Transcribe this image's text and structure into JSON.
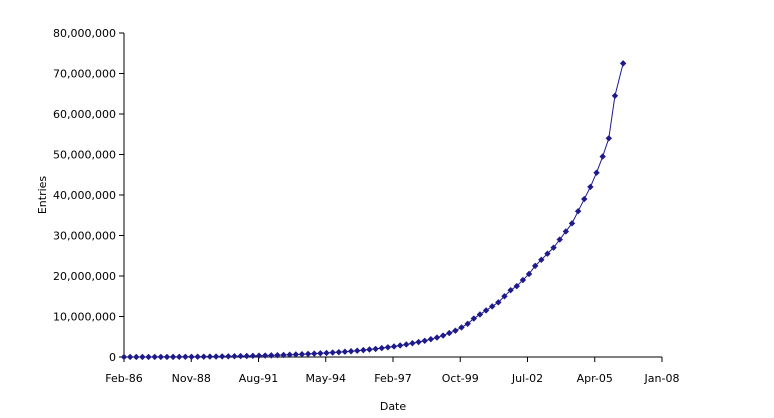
{
  "chart_data": {
    "type": "line",
    "title": "",
    "xlabel": "Date",
    "ylabel": "Entries",
    "x_tick_labels": [
      "Feb-86",
      "Nov-88",
      "Aug-91",
      "May-94",
      "Feb-97",
      "Oct-99",
      "Jul-02",
      "Apr-05",
      "Jan-08"
    ],
    "y_tick_labels": [
      "0",
      "10,000,000",
      "20,000,000",
      "30,000,000",
      "40,000,000",
      "50,000,000",
      "60,000,000",
      "70,000,000",
      "80,000,000"
    ],
    "xlim": [
      "1986-02",
      "2008-01"
    ],
    "ylim": [
      0,
      80000000
    ],
    "grid": false,
    "legend": "none",
    "series_color": "#1f1a8c",
    "marker": "diamond",
    "series": [
      {
        "x": [
          "1986-02",
          "1986-05",
          "1986-08",
          "1986-11",
          "1987-02",
          "1987-05",
          "1987-08",
          "1987-11",
          "1988-02",
          "1988-05",
          "1988-08",
          "1988-11",
          "1989-02",
          "1989-05",
          "1989-08",
          "1989-11",
          "1990-02",
          "1990-05",
          "1990-08",
          "1990-11",
          "1991-02",
          "1991-05",
          "1991-08",
          "1991-11",
          "1992-02",
          "1992-05",
          "1992-08",
          "1992-11",
          "1993-02",
          "1993-05",
          "1993-08",
          "1993-11",
          "1994-02",
          "1994-05",
          "1994-08",
          "1994-11",
          "1995-02",
          "1995-05",
          "1995-08",
          "1995-11",
          "1996-02",
          "1996-05",
          "1996-08",
          "1996-11",
          "1997-02",
          "1997-05",
          "1997-08",
          "1997-11",
          "1998-02",
          "1998-05",
          "1998-08",
          "1998-11",
          "1999-02",
          "1999-05",
          "1999-08",
          "1999-11",
          "2000-02",
          "2000-05",
          "2000-08",
          "2000-11",
          "2001-02",
          "2001-05",
          "2001-08",
          "2001-11",
          "2002-02",
          "2002-05",
          "2002-08",
          "2002-11",
          "2003-02",
          "2003-05",
          "2003-08",
          "2003-11",
          "2004-02",
          "2004-05",
          "2004-08",
          "2004-11",
          "2005-02",
          "2005-05",
          "2005-08",
          "2005-11",
          "2006-02",
          "2006-06"
        ],
        "y": [
          5000,
          7000,
          9000,
          12000,
          15000,
          18000,
          22000,
          27000,
          33000,
          40000,
          48000,
          58000,
          70000,
          85000,
          100000,
          120000,
          140000,
          165000,
          190000,
          220000,
          250000,
          285000,
          320000,
          360000,
          400000,
          450000,
          500000,
          560000,
          620000,
          690000,
          760000,
          840000,
          920000,
          1000000,
          1100000,
          1200000,
          1300000,
          1420000,
          1550000,
          1700000,
          1850000,
          2000000,
          2200000,
          2400000,
          2600000,
          2850000,
          3100000,
          3400000,
          3700000,
          4000000,
          4400000,
          4800000,
          5300000,
          5900000,
          6500000,
          7300000,
          8200000,
          9500000,
          10500000,
          11500000,
          12500000,
          13500000,
          15000000,
          16500000,
          17500000,
          19000000,
          20500000,
          22500000,
          24000000,
          25500000,
          27000000,
          29000000,
          31000000,
          33000000,
          36000000,
          39000000,
          42000000,
          45500000,
          49500000,
          54000000,
          64500000,
          72500000
        ]
      }
    ]
  }
}
